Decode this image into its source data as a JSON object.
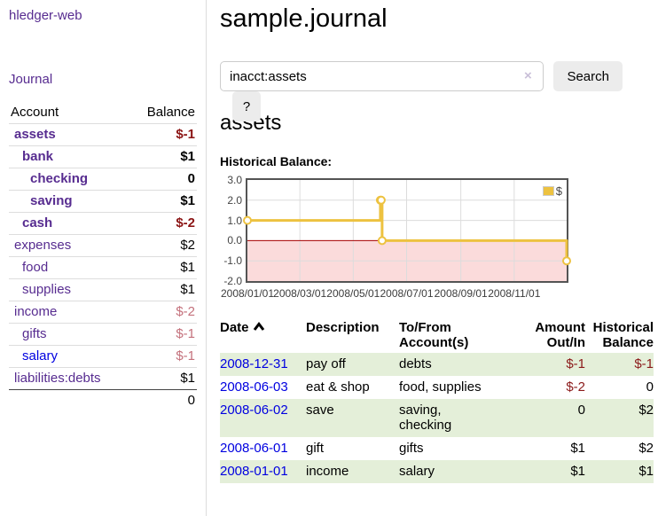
{
  "colors": {
    "link_purple": "#572c90",
    "link_blue": "#0000e0",
    "negative_strong": "#8b1414",
    "negative_soft": "#c4717c",
    "table_negative": "#8b1a1a",
    "stripe_green": "#e4efd9",
    "chart_line": "#edc240",
    "chart_negative_region": "#fbdbdb",
    "chart_zero_line": "#aa0000",
    "chart_border": "#545454",
    "button_bg": "#ececec"
  },
  "sidebar": {
    "brand": "hledger-web",
    "journal_link": "Journal",
    "accounts_table": {
      "headers": {
        "account": "Account",
        "balance": "Balance"
      },
      "rows": [
        {
          "name": "assets",
          "indent": 1,
          "bold": true,
          "link_color": "purple",
          "balance": "$-1",
          "balance_class": "neg-strong"
        },
        {
          "name": "bank",
          "indent": 2,
          "bold": true,
          "link_color": "purple",
          "balance": "$1",
          "balance_class": ""
        },
        {
          "name": "checking",
          "indent": 3,
          "bold": true,
          "link_color": "purple",
          "balance": "0",
          "balance_class": ""
        },
        {
          "name": "saving",
          "indent": 3,
          "bold": true,
          "link_color": "purple",
          "balance": "$1",
          "balance_class": ""
        },
        {
          "name": "cash",
          "indent": 2,
          "bold": true,
          "link_color": "purple",
          "balance": "$-2",
          "balance_class": "neg-strong"
        },
        {
          "name": "expenses",
          "indent": 1,
          "bold": false,
          "link_color": "purple",
          "balance": "$2",
          "balance_class": ""
        },
        {
          "name": "food",
          "indent": 2,
          "bold": false,
          "link_color": "purple",
          "balance": "$1",
          "balance_class": ""
        },
        {
          "name": "supplies",
          "indent": 2,
          "bold": false,
          "link_color": "purple",
          "balance": "$1",
          "balance_class": ""
        },
        {
          "name": "income",
          "indent": 1,
          "bold": false,
          "link_color": "purple",
          "balance": "$-2",
          "balance_class": "neg-soft"
        },
        {
          "name": "gifts",
          "indent": 2,
          "bold": false,
          "link_color": "purple",
          "balance": "$-1",
          "balance_class": "neg-soft"
        },
        {
          "name": "salary",
          "indent": 2,
          "bold": false,
          "link_color": "blue",
          "balance": "$-1",
          "balance_class": "neg-soft"
        },
        {
          "name": "liabilities:debts",
          "indent": 1,
          "bold": false,
          "link_color": "purple",
          "balance": "$1",
          "balance_class": ""
        }
      ],
      "total": "0"
    }
  },
  "main": {
    "title": "sample.journal",
    "search": {
      "value": "inacct:assets",
      "clear_icon": "×",
      "button_label": "Search",
      "help_label": "?"
    },
    "account_heading": "assets",
    "chart_label": "Historical Balance:"
  },
  "chart_data": {
    "type": "line",
    "title": "Historical Balance",
    "step": true,
    "series": [
      {
        "name": "$",
        "color": "#edc240",
        "points": [
          {
            "date": "2008-01-01",
            "value": 1
          },
          {
            "date": "2008-06-01",
            "value": 2
          },
          {
            "date": "2008-06-02",
            "value": 2
          },
          {
            "date": "2008-06-03",
            "value": 0
          },
          {
            "date": "2008-12-31",
            "value": -1
          }
        ]
      }
    ],
    "x_domain": [
      "2008-01-01",
      "2008-12-31"
    ],
    "x_ticks": [
      "2008/01/01",
      "2008/03/01",
      "2008/05/01",
      "2008/07/01",
      "2008/09/01",
      "2008/11/01"
    ],
    "y_ticks": [
      "3.0",
      "2.0",
      "1.0",
      "0.0",
      "-1.0",
      "-2.0"
    ],
    "ylim": [
      -2,
      3
    ],
    "legend": "$",
    "legend_position": "top-right",
    "grid": true,
    "negative_region_shaded": true
  },
  "register": {
    "headers": {
      "date": "Date",
      "description": "Description",
      "accounts": "To/From Account(s)",
      "amount": "Amount Out/In",
      "balance": "Historical Balance"
    },
    "rows": [
      {
        "date": "2008-12-31",
        "description": "pay off",
        "accounts": "debts",
        "amount": "$-1",
        "amount_neg": true,
        "balance": "$-1",
        "balance_neg": true,
        "striped": true
      },
      {
        "date": "2008-06-03",
        "description": "eat & shop",
        "accounts": "food, supplies",
        "amount": "$-2",
        "amount_neg": true,
        "balance": "0",
        "balance_neg": false,
        "striped": false
      },
      {
        "date": "2008-06-02",
        "description": "save",
        "accounts": "saving,\nchecking",
        "amount": "0",
        "amount_neg": false,
        "balance": "$2",
        "balance_neg": false,
        "striped": true
      },
      {
        "date": "2008-06-01",
        "description": "gift",
        "accounts": "gifts",
        "amount": "$1",
        "amount_neg": false,
        "balance": "$2",
        "balance_neg": false,
        "striped": false
      },
      {
        "date": "2008-01-01",
        "description": "income",
        "accounts": "salary",
        "amount": "$1",
        "amount_neg": false,
        "balance": "$1",
        "balance_neg": false,
        "striped": true
      }
    ]
  }
}
